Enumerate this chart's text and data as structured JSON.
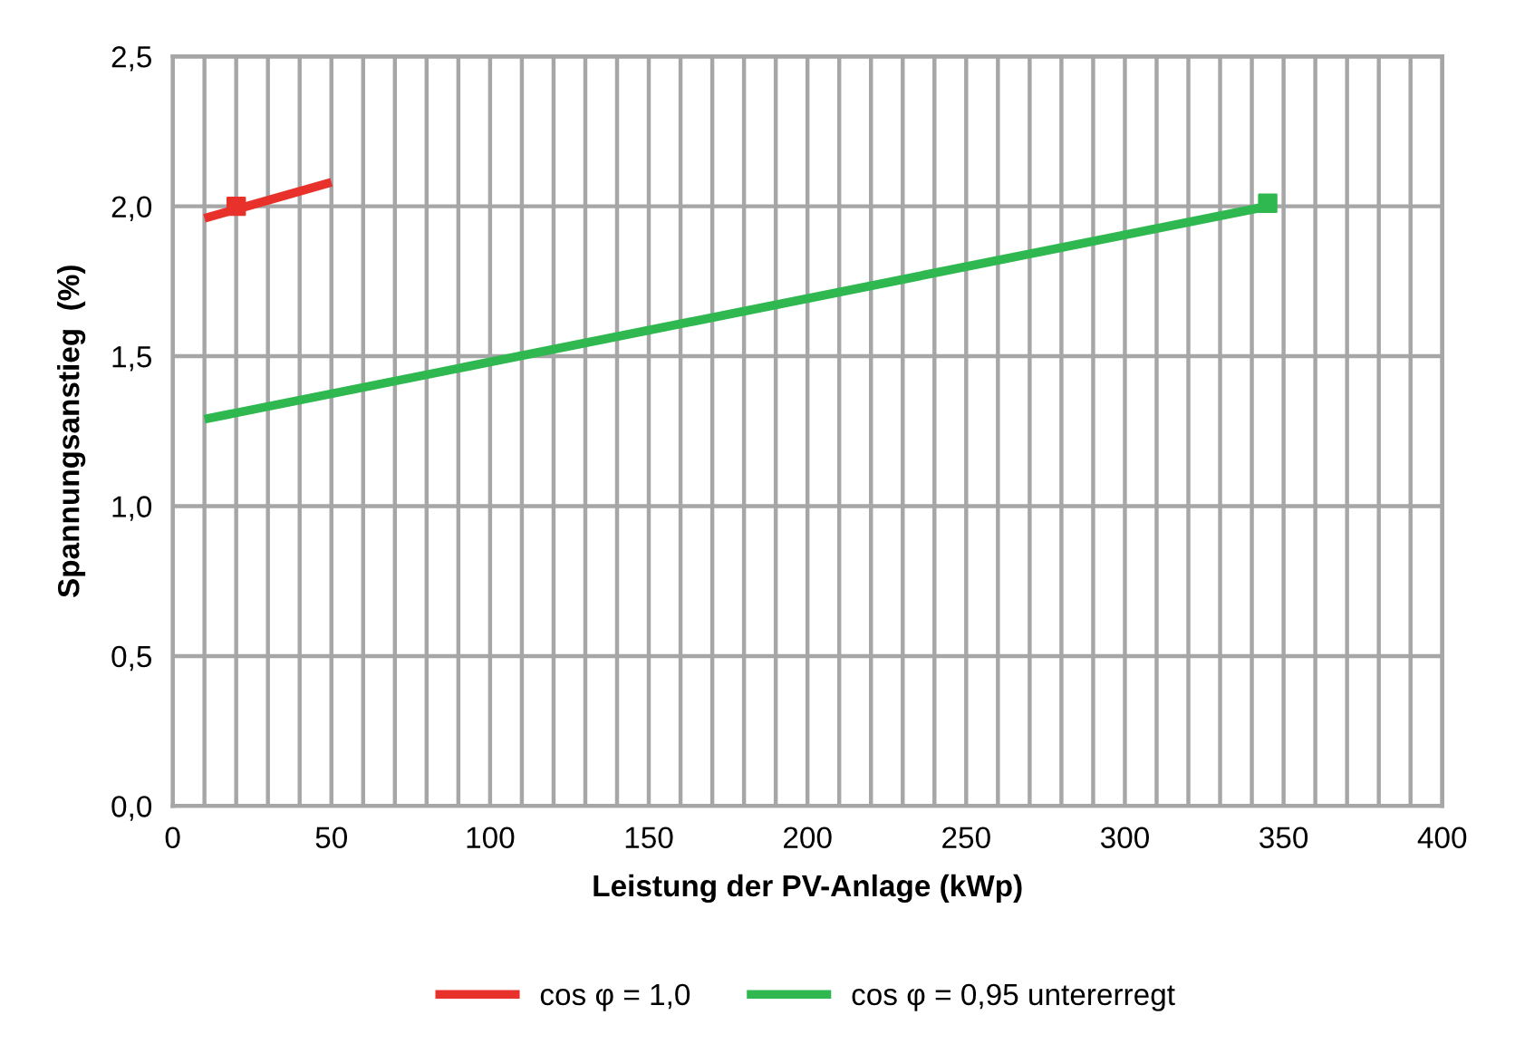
{
  "chart_data": {
    "type": "line",
    "xlabel": "Leistung der PV-Anlage (kWp)",
    "ylabel": "Spannungsanstieg  (%)",
    "xlim": [
      0,
      400
    ],
    "ylim": [
      0,
      2.5
    ],
    "xticks": [
      0,
      {
        "value": 10,
        "label": null
      },
      {
        "value": 20,
        "label": null
      },
      {
        "value": 30,
        "label": null
      },
      {
        "value": 40,
        "label": null
      },
      50,
      {
        "value": 60,
        "label": null
      },
      {
        "value": 70,
        "label": null
      },
      {
        "value": 80,
        "label": null
      },
      {
        "value": 90,
        "label": null
      },
      100,
      {
        "value": 110,
        "label": null
      },
      {
        "value": 120,
        "label": null
      },
      {
        "value": 130,
        "label": null
      },
      {
        "value": 140,
        "label": null
      },
      150,
      {
        "value": 160,
        "label": null
      },
      {
        "value": 170,
        "label": null
      },
      {
        "value": 180,
        "label": null
      },
      {
        "value": 190,
        "label": null
      },
      200,
      {
        "value": 210,
        "label": null
      },
      {
        "value": 220,
        "label": null
      },
      {
        "value": 230,
        "label": null
      },
      {
        "value": 240,
        "label": null
      },
      250,
      {
        "value": 260,
        "label": null
      },
      {
        "value": 270,
        "label": null
      },
      {
        "value": 280,
        "label": null
      },
      {
        "value": 290,
        "label": null
      },
      300,
      {
        "value": 310,
        "label": null
      },
      {
        "value": 320,
        "label": null
      },
      {
        "value": 330,
        "label": null
      },
      {
        "value": 340,
        "label": null
      },
      350,
      {
        "value": 360,
        "label": null
      },
      {
        "value": 370,
        "label": null
      },
      {
        "value": 380,
        "label": null
      },
      {
        "value": 390,
        "label": null
      },
      400
    ],
    "yticks": [
      {
        "value": 0,
        "label": "0,0"
      },
      {
        "value": 0.5,
        "label": "0,5"
      },
      {
        "value": 1.0,
        "label": "1,0"
      },
      {
        "value": 1.5,
        "label": "1,5"
      },
      {
        "value": 2.0,
        "label": "2,0"
      },
      {
        "value": 2.5,
        "label": "2,5"
      }
    ],
    "grid": true,
    "legend": "bottom",
    "line_style": "solid",
    "series": [
      {
        "name": "cos φ = 1,0",
        "color": "#e8312a",
        "x": [
          10,
          50
        ],
        "values": [
          1.96,
          2.08
        ]
      },
      {
        "name": "cos φ = 0,95 untererregt",
        "color": "#2eb84f",
        "x": [
          10,
          345
        ],
        "values": [
          1.29,
          2.0
        ]
      },
      {
        "type": "scatter",
        "marker": "square",
        "color": "#e8312a",
        "x": [
          20
        ],
        "values": [
          2.0
        ]
      },
      {
        "type": "scatter",
        "marker": "square",
        "color": "#2eb84f",
        "x": [
          345
        ],
        "values": [
          2.01
        ]
      }
    ]
  }
}
